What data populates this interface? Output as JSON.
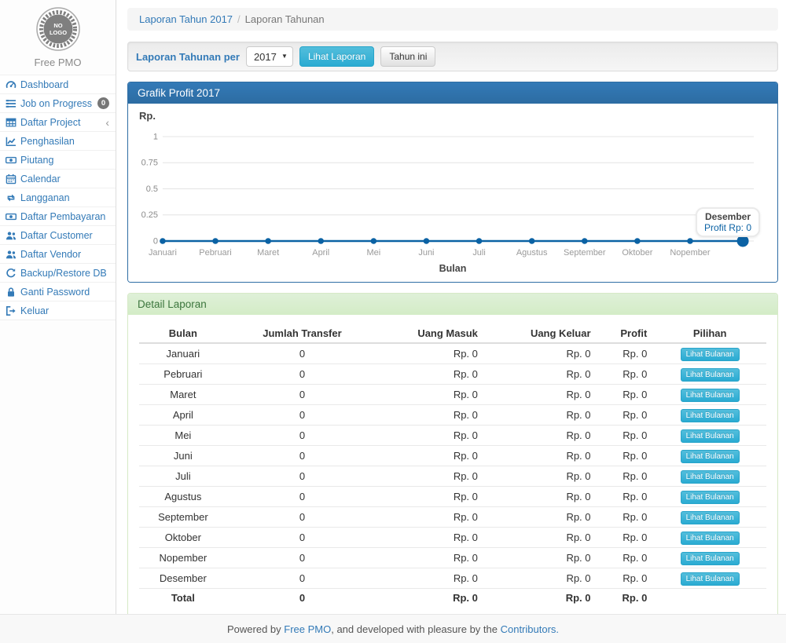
{
  "colors": {
    "accent_link": "#337ab7",
    "panel_primary_header": "#2d6ca2",
    "panel_success_header_bg": "#dff0d8",
    "panel_success_text": "#3c763d",
    "info_button": "#2aabd2",
    "chart_line": "#0b62a4"
  },
  "sidebar": {
    "logo_line1": "NO",
    "logo_line2": "LOGO",
    "brand": "Free PMO",
    "items": [
      {
        "label": "Dashboard",
        "icon": "dashboard-icon"
      },
      {
        "label": "Job on Progress",
        "icon": "tasks-icon",
        "badge": "0"
      },
      {
        "label": "Daftar Project",
        "icon": "table-icon",
        "chevron": "‹"
      },
      {
        "label": "Penghasilan",
        "icon": "line-chart-icon"
      },
      {
        "label": "Piutang",
        "icon": "money-icon"
      },
      {
        "label": "Calendar",
        "icon": "calendar-icon"
      },
      {
        "label": "Langganan",
        "icon": "retweet-icon"
      },
      {
        "label": "Daftar Pembayaran",
        "icon": "money-icon"
      },
      {
        "label": "Daftar Customer",
        "icon": "users-icon"
      },
      {
        "label": "Daftar Vendor",
        "icon": "users-icon"
      },
      {
        "label": "Backup/Restore DB",
        "icon": "refresh-icon"
      },
      {
        "label": "Ganti Password",
        "icon": "lock-icon"
      },
      {
        "label": "Keluar",
        "icon": "sign-out-icon"
      }
    ]
  },
  "breadcrumb": {
    "parent": "Laporan Tahun 2017",
    "separator": "/",
    "current": "Laporan Tahunan"
  },
  "filter": {
    "label": "Laporan Tahunan per",
    "year_value": "2017",
    "submit_label": "Lihat Laporan",
    "this_year_label": "Tahun ini"
  },
  "chart_data": {
    "type": "line",
    "title": "Grafik Profit 2017",
    "ylabel": "Rp.",
    "xlabel": "Bulan",
    "categories": [
      "Januari",
      "Pebruari",
      "Maret",
      "April",
      "Mei",
      "Juni",
      "Juli",
      "Agustus",
      "September",
      "Oktober",
      "Nopember",
      "Desember"
    ],
    "values": [
      0,
      0,
      0,
      0,
      0,
      0,
      0,
      0,
      0,
      0,
      0,
      0
    ],
    "yticks": [
      0,
      0.25,
      0.5,
      0.75,
      1
    ],
    "ylim": [
      0,
      1
    ],
    "grid": true,
    "line_color": "#0b62a4",
    "hide_last_x_label": true,
    "hovered_point_index": 11,
    "tooltip": {
      "label": "Desember",
      "value": "Profit Rp: 0"
    }
  },
  "detail_panel": {
    "title": "Detail Laporan",
    "table": {
      "columns": [
        "Bulan",
        "Jumlah Transfer",
        "Uang Masuk",
        "Uang Keluar",
        "Profit",
        "Pilihan"
      ],
      "rows": [
        {
          "month": "Januari",
          "transfer": "0",
          "in": "Rp. 0",
          "out": "Rp. 0",
          "profit": "Rp. 0",
          "action": "Lihat Bulanan"
        },
        {
          "month": "Pebruari",
          "transfer": "0",
          "in": "Rp. 0",
          "out": "Rp. 0",
          "profit": "Rp. 0",
          "action": "Lihat Bulanan"
        },
        {
          "month": "Maret",
          "transfer": "0",
          "in": "Rp. 0",
          "out": "Rp. 0",
          "profit": "Rp. 0",
          "action": "Lihat Bulanan"
        },
        {
          "month": "April",
          "transfer": "0",
          "in": "Rp. 0",
          "out": "Rp. 0",
          "profit": "Rp. 0",
          "action": "Lihat Bulanan"
        },
        {
          "month": "Mei",
          "transfer": "0",
          "in": "Rp. 0",
          "out": "Rp. 0",
          "profit": "Rp. 0",
          "action": "Lihat Bulanan"
        },
        {
          "month": "Juni",
          "transfer": "0",
          "in": "Rp. 0",
          "out": "Rp. 0",
          "profit": "Rp. 0",
          "action": "Lihat Bulanan"
        },
        {
          "month": "Juli",
          "transfer": "0",
          "in": "Rp. 0",
          "out": "Rp. 0",
          "profit": "Rp. 0",
          "action": "Lihat Bulanan"
        },
        {
          "month": "Agustus",
          "transfer": "0",
          "in": "Rp. 0",
          "out": "Rp. 0",
          "profit": "Rp. 0",
          "action": "Lihat Bulanan"
        },
        {
          "month": "September",
          "transfer": "0",
          "in": "Rp. 0",
          "out": "Rp. 0",
          "profit": "Rp. 0",
          "action": "Lihat Bulanan"
        },
        {
          "month": "Oktober",
          "transfer": "0",
          "in": "Rp. 0",
          "out": "Rp. 0",
          "profit": "Rp. 0",
          "action": "Lihat Bulanan"
        },
        {
          "month": "Nopember",
          "transfer": "0",
          "in": "Rp. 0",
          "out": "Rp. 0",
          "profit": "Rp. 0",
          "action": "Lihat Bulanan"
        },
        {
          "month": "Desember",
          "transfer": "0",
          "in": "Rp. 0",
          "out": "Rp. 0",
          "profit": "Rp. 0",
          "action": "Lihat Bulanan"
        }
      ],
      "total": {
        "month": "Total",
        "transfer": "0",
        "in": "Rp. 0",
        "out": "Rp. 0",
        "profit": "Rp. 0"
      }
    }
  },
  "footer": {
    "prefix": "Powered by ",
    "link1": "Free PMO",
    "middle": ", and developed with pleasure by the ",
    "link2": "Contributors.",
    "suffix": ""
  }
}
